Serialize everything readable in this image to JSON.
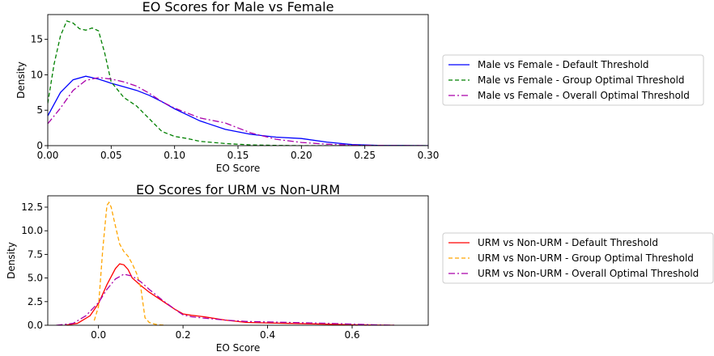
{
  "chart_data": [
    {
      "type": "line",
      "title": "EO Scores for Male vs Female",
      "xlabel": "EO Score",
      "ylabel": "Density",
      "xlim": [
        0.0,
        0.3
      ],
      "ylim": [
        0,
        18.5
      ],
      "xticks": [
        "0.00",
        "0.05",
        "0.10",
        "0.15",
        "0.20",
        "0.25",
        "0.30"
      ],
      "xtick_values": [
        0.0,
        0.05,
        0.1,
        0.15,
        0.2,
        0.25,
        0.3
      ],
      "yticks": [
        "0",
        "5",
        "10",
        "15"
      ],
      "ytick_values": [
        0,
        5,
        10,
        15
      ],
      "grid": false,
      "legend_position": "right",
      "series": [
        {
          "name": "Male vs Female - Default Threshold",
          "color": "#0000ff",
          "style": "solid",
          "x": [
            0.0,
            0.01,
            0.02,
            0.03,
            0.04,
            0.05,
            0.06,
            0.07,
            0.08,
            0.09,
            0.1,
            0.12,
            0.14,
            0.16,
            0.18,
            0.2,
            0.22,
            0.24,
            0.26,
            0.28,
            0.3
          ],
          "y": [
            4.2,
            7.5,
            9.3,
            9.8,
            9.4,
            8.8,
            8.3,
            7.8,
            7.1,
            6.2,
            5.2,
            3.5,
            2.3,
            1.6,
            1.2,
            1.0,
            0.5,
            0.15,
            0.05,
            0.02,
            0.0
          ]
        },
        {
          "name": "Male vs Female - Group Optimal Threshold",
          "color": "#008000",
          "style": "dashed",
          "x": [
            0.0,
            0.005,
            0.01,
            0.015,
            0.02,
            0.025,
            0.03,
            0.035,
            0.04,
            0.045,
            0.05,
            0.06,
            0.07,
            0.08,
            0.09,
            0.1,
            0.11,
            0.12,
            0.14,
            0.16,
            0.18,
            0.2,
            0.25,
            0.3
          ],
          "y": [
            6.0,
            11.5,
            15.5,
            17.6,
            17.3,
            16.5,
            16.3,
            16.6,
            16.2,
            13.0,
            9.0,
            6.8,
            5.6,
            3.8,
            2.0,
            1.3,
            1.0,
            0.6,
            0.3,
            0.1,
            0.03,
            0.0,
            0.0,
            0.0
          ]
        },
        {
          "name": "Male vs Female - Overall Optimal Threshold",
          "color": "#aa00aa",
          "style": "dashdot",
          "x": [
            0.0,
            0.01,
            0.02,
            0.03,
            0.04,
            0.05,
            0.06,
            0.07,
            0.08,
            0.09,
            0.1,
            0.12,
            0.14,
            0.16,
            0.18,
            0.2,
            0.22,
            0.24,
            0.26,
            0.28,
            0.3
          ],
          "y": [
            3.1,
            5.3,
            7.8,
            9.2,
            9.6,
            9.4,
            9.0,
            8.4,
            7.4,
            6.2,
            5.3,
            3.9,
            3.2,
            1.8,
            0.9,
            0.45,
            0.2,
            0.07,
            0.02,
            0.01,
            0.0
          ]
        }
      ]
    },
    {
      "type": "line",
      "title": "EO Scores for URM vs Non-URM",
      "xlabel": "EO Score",
      "ylabel": "Density",
      "xlim": [
        -0.12,
        0.78
      ],
      "ylim": [
        0,
        13.7
      ],
      "xticks": [
        "0.0",
        "0.2",
        "0.4",
        "0.6"
      ],
      "xtick_values": [
        0.0,
        0.2,
        0.4,
        0.6
      ],
      "yticks": [
        "0.0",
        "2.5",
        "5.0",
        "7.5",
        "10.0",
        "12.5"
      ],
      "ytick_values": [
        0.0,
        2.5,
        5.0,
        7.5,
        10.0,
        12.5
      ],
      "grid": false,
      "legend_position": "right",
      "series": [
        {
          "name": "URM vs Non-URM - Default Threshold",
          "color": "#ff0000",
          "style": "solid",
          "x": [
            -0.08,
            -0.05,
            -0.02,
            0.0,
            0.02,
            0.04,
            0.05,
            0.06,
            0.07,
            0.08,
            0.1,
            0.12,
            0.15,
            0.18,
            0.2,
            0.22,
            0.25,
            0.3,
            0.35,
            0.4,
            0.45,
            0.5,
            0.55,
            0.6,
            0.65,
            0.7
          ],
          "y": [
            0.0,
            0.2,
            1.0,
            2.3,
            4.3,
            6.0,
            6.5,
            6.4,
            5.9,
            5.0,
            4.2,
            3.5,
            2.6,
            1.7,
            1.2,
            1.05,
            0.9,
            0.55,
            0.3,
            0.25,
            0.2,
            0.15,
            0.1,
            0.05,
            0.02,
            0.0
          ]
        },
        {
          "name": "URM vs Non-URM - Group Optimal Threshold",
          "color": "#ffa500",
          "style": "dashed",
          "x": [
            -0.01,
            0.0,
            0.01,
            0.02,
            0.025,
            0.03,
            0.04,
            0.05,
            0.06,
            0.07,
            0.08,
            0.09,
            0.1,
            0.11,
            0.12,
            0.13,
            0.14,
            0.16
          ],
          "y": [
            0.5,
            2.0,
            8.0,
            12.7,
            13.0,
            12.5,
            10.5,
            8.6,
            7.8,
            7.3,
            6.5,
            5.5,
            4.0,
            0.8,
            0.3,
            0.15,
            0.05,
            0.0
          ]
        },
        {
          "name": "URM vs Non-URM - Overall Optimal Threshold",
          "color": "#aa00aa",
          "style": "dashdot",
          "x": [
            -0.1,
            -0.06,
            -0.03,
            0.0,
            0.02,
            0.04,
            0.06,
            0.08,
            0.1,
            0.12,
            0.15,
            0.18,
            0.2,
            0.22,
            0.25,
            0.3,
            0.35,
            0.4,
            0.45,
            0.5,
            0.55,
            0.6,
            0.65,
            0.7
          ],
          "y": [
            0.0,
            0.2,
            1.0,
            2.4,
            3.8,
            4.9,
            5.4,
            5.2,
            4.6,
            3.8,
            2.7,
            1.7,
            1.1,
            0.9,
            0.75,
            0.55,
            0.4,
            0.35,
            0.3,
            0.25,
            0.2,
            0.12,
            0.05,
            0.0
          ]
        }
      ]
    }
  ]
}
